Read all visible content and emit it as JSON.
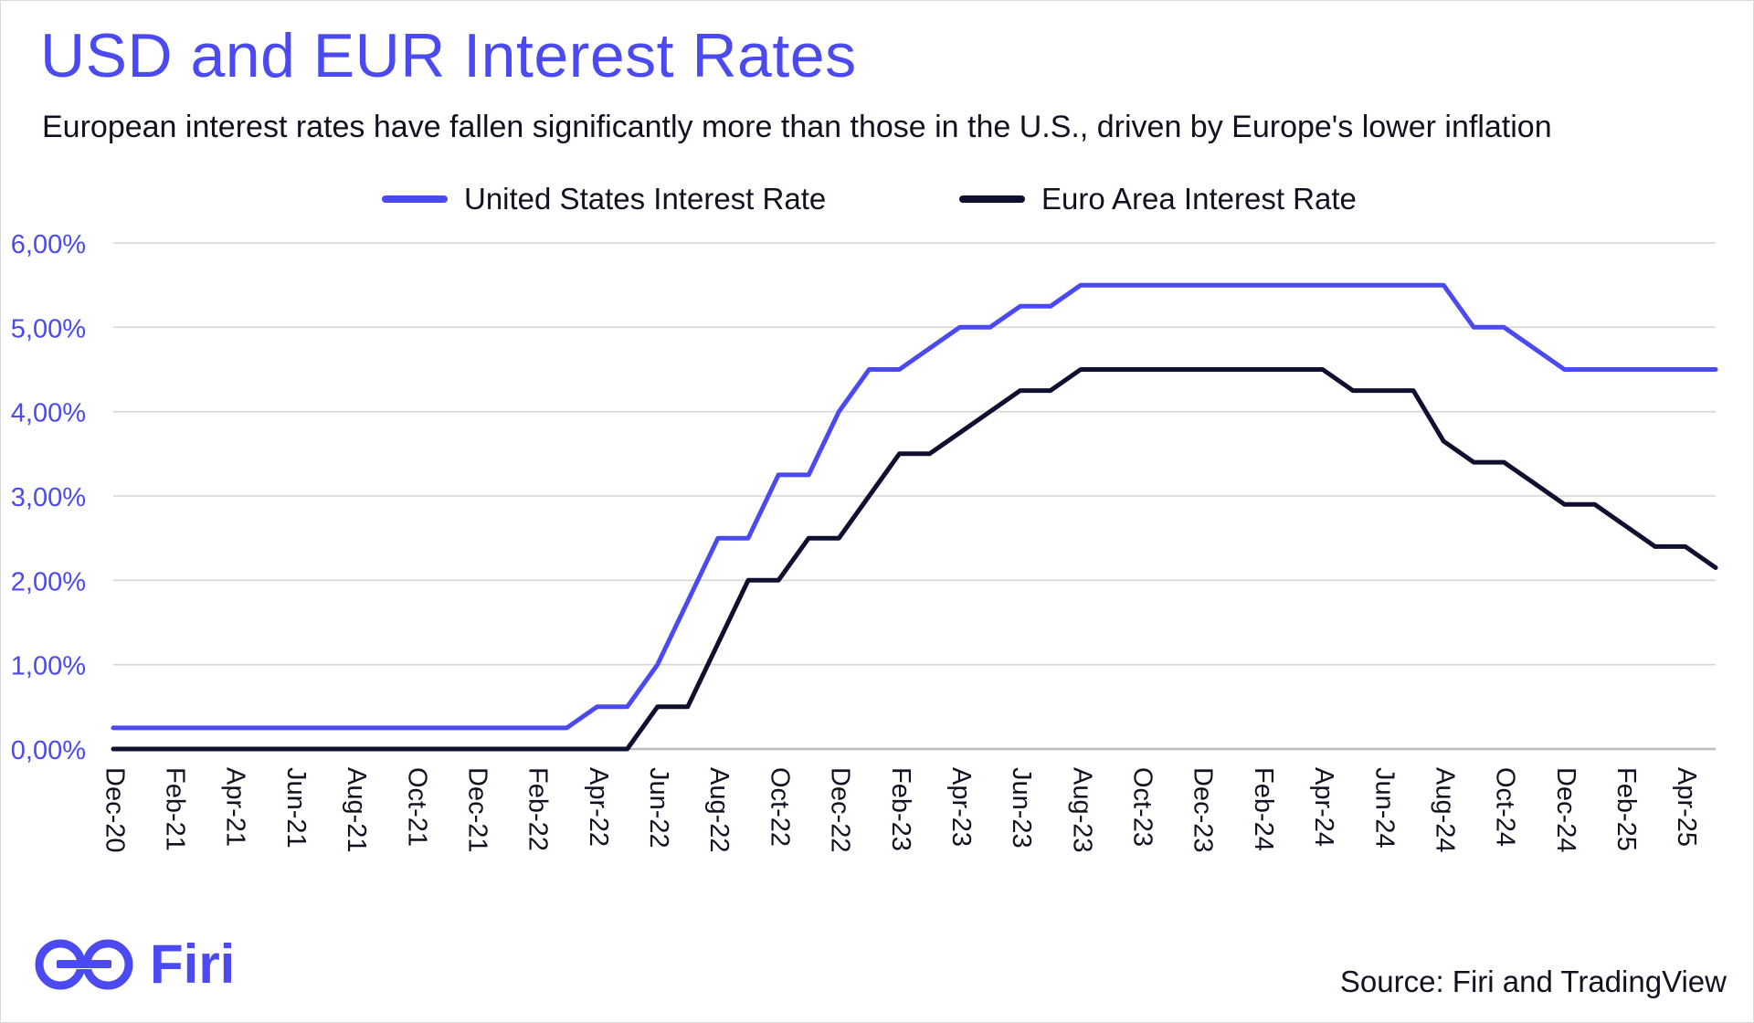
{
  "header": {
    "title": "USD and EUR Interest Rates",
    "subtitle": "European interest rates have fallen significantly more than those in the U.S., driven by Europe's lower inflation"
  },
  "footer": {
    "brand": "Firi",
    "source": "Source: Firi and TradingView"
  },
  "colors": {
    "us": "#4a4af0",
    "eu": "#0f1030",
    "grid": "#d6d6d6",
    "title": "#4a4af0"
  },
  "chart_data": {
    "type": "line",
    "title": "USD and EUR Interest Rates",
    "xlabel": "",
    "ylabel": "",
    "ylim": [
      0,
      6
    ],
    "grid": true,
    "legend_position": "top-center",
    "y_ticks": [
      "0,00%",
      "1,00%",
      "2,00%",
      "3,00%",
      "4,00%",
      "5,00%",
      "6,00%"
    ],
    "x_ticks": [
      "Dec-20",
      "Feb-21",
      "Apr-21",
      "Jun-21",
      "Aug-21",
      "Oct-21",
      "Dec-21",
      "Feb-22",
      "Apr-22",
      "Jun-22",
      "Aug-22",
      "Oct-22",
      "Dec-22",
      "Feb-23",
      "Apr-23",
      "Jun-23",
      "Aug-23",
      "Oct-23",
      "Dec-23",
      "Feb-24",
      "Apr-24",
      "Jun-24",
      "Aug-24",
      "Oct-24",
      "Dec-24",
      "Feb-25",
      "Apr-25"
    ],
    "x_range": [
      0,
      53
    ],
    "series": [
      {
        "name": "United States Interest Rate",
        "color": "#4a4af0",
        "points": [
          [
            0,
            0.25
          ],
          [
            15,
            0.25
          ],
          [
            16,
            0.5
          ],
          [
            17,
            0.5
          ],
          [
            18,
            1.0
          ],
          [
            19,
            1.75
          ],
          [
            20,
            2.5
          ],
          [
            21,
            2.5
          ],
          [
            22,
            3.25
          ],
          [
            23,
            3.25
          ],
          [
            24,
            4.0
          ],
          [
            25,
            4.5
          ],
          [
            26,
            4.5
          ],
          [
            27,
            4.75
          ],
          [
            28,
            5.0
          ],
          [
            29,
            5.0
          ],
          [
            30,
            5.25
          ],
          [
            31,
            5.25
          ],
          [
            32,
            5.5
          ],
          [
            44,
            5.5
          ],
          [
            45,
            5.0
          ],
          [
            46,
            5.0
          ],
          [
            47,
            4.75
          ],
          [
            48,
            4.5
          ],
          [
            53,
            4.5
          ]
        ]
      },
      {
        "name": "Euro Area Interest Rate",
        "color": "#0f1030",
        "points": [
          [
            0,
            0.0
          ],
          [
            17,
            0.0
          ],
          [
            18,
            0.5
          ],
          [
            19,
            0.5
          ],
          [
            20,
            1.25
          ],
          [
            21,
            2.0
          ],
          [
            22,
            2.0
          ],
          [
            23,
            2.5
          ],
          [
            24,
            2.5
          ],
          [
            25,
            3.0
          ],
          [
            26,
            3.5
          ],
          [
            27,
            3.5
          ],
          [
            28,
            3.75
          ],
          [
            29,
            4.0
          ],
          [
            30,
            4.25
          ],
          [
            31,
            4.25
          ],
          [
            32,
            4.5
          ],
          [
            40,
            4.5
          ],
          [
            41,
            4.25
          ],
          [
            43,
            4.25
          ],
          [
            44,
            3.65
          ],
          [
            45,
            3.4
          ],
          [
            46,
            3.4
          ],
          [
            47,
            3.15
          ],
          [
            48,
            2.9
          ],
          [
            49,
            2.9
          ],
          [
            50,
            2.65
          ],
          [
            51,
            2.4
          ],
          [
            52,
            2.4
          ],
          [
            53,
            2.15
          ]
        ]
      }
    ]
  }
}
